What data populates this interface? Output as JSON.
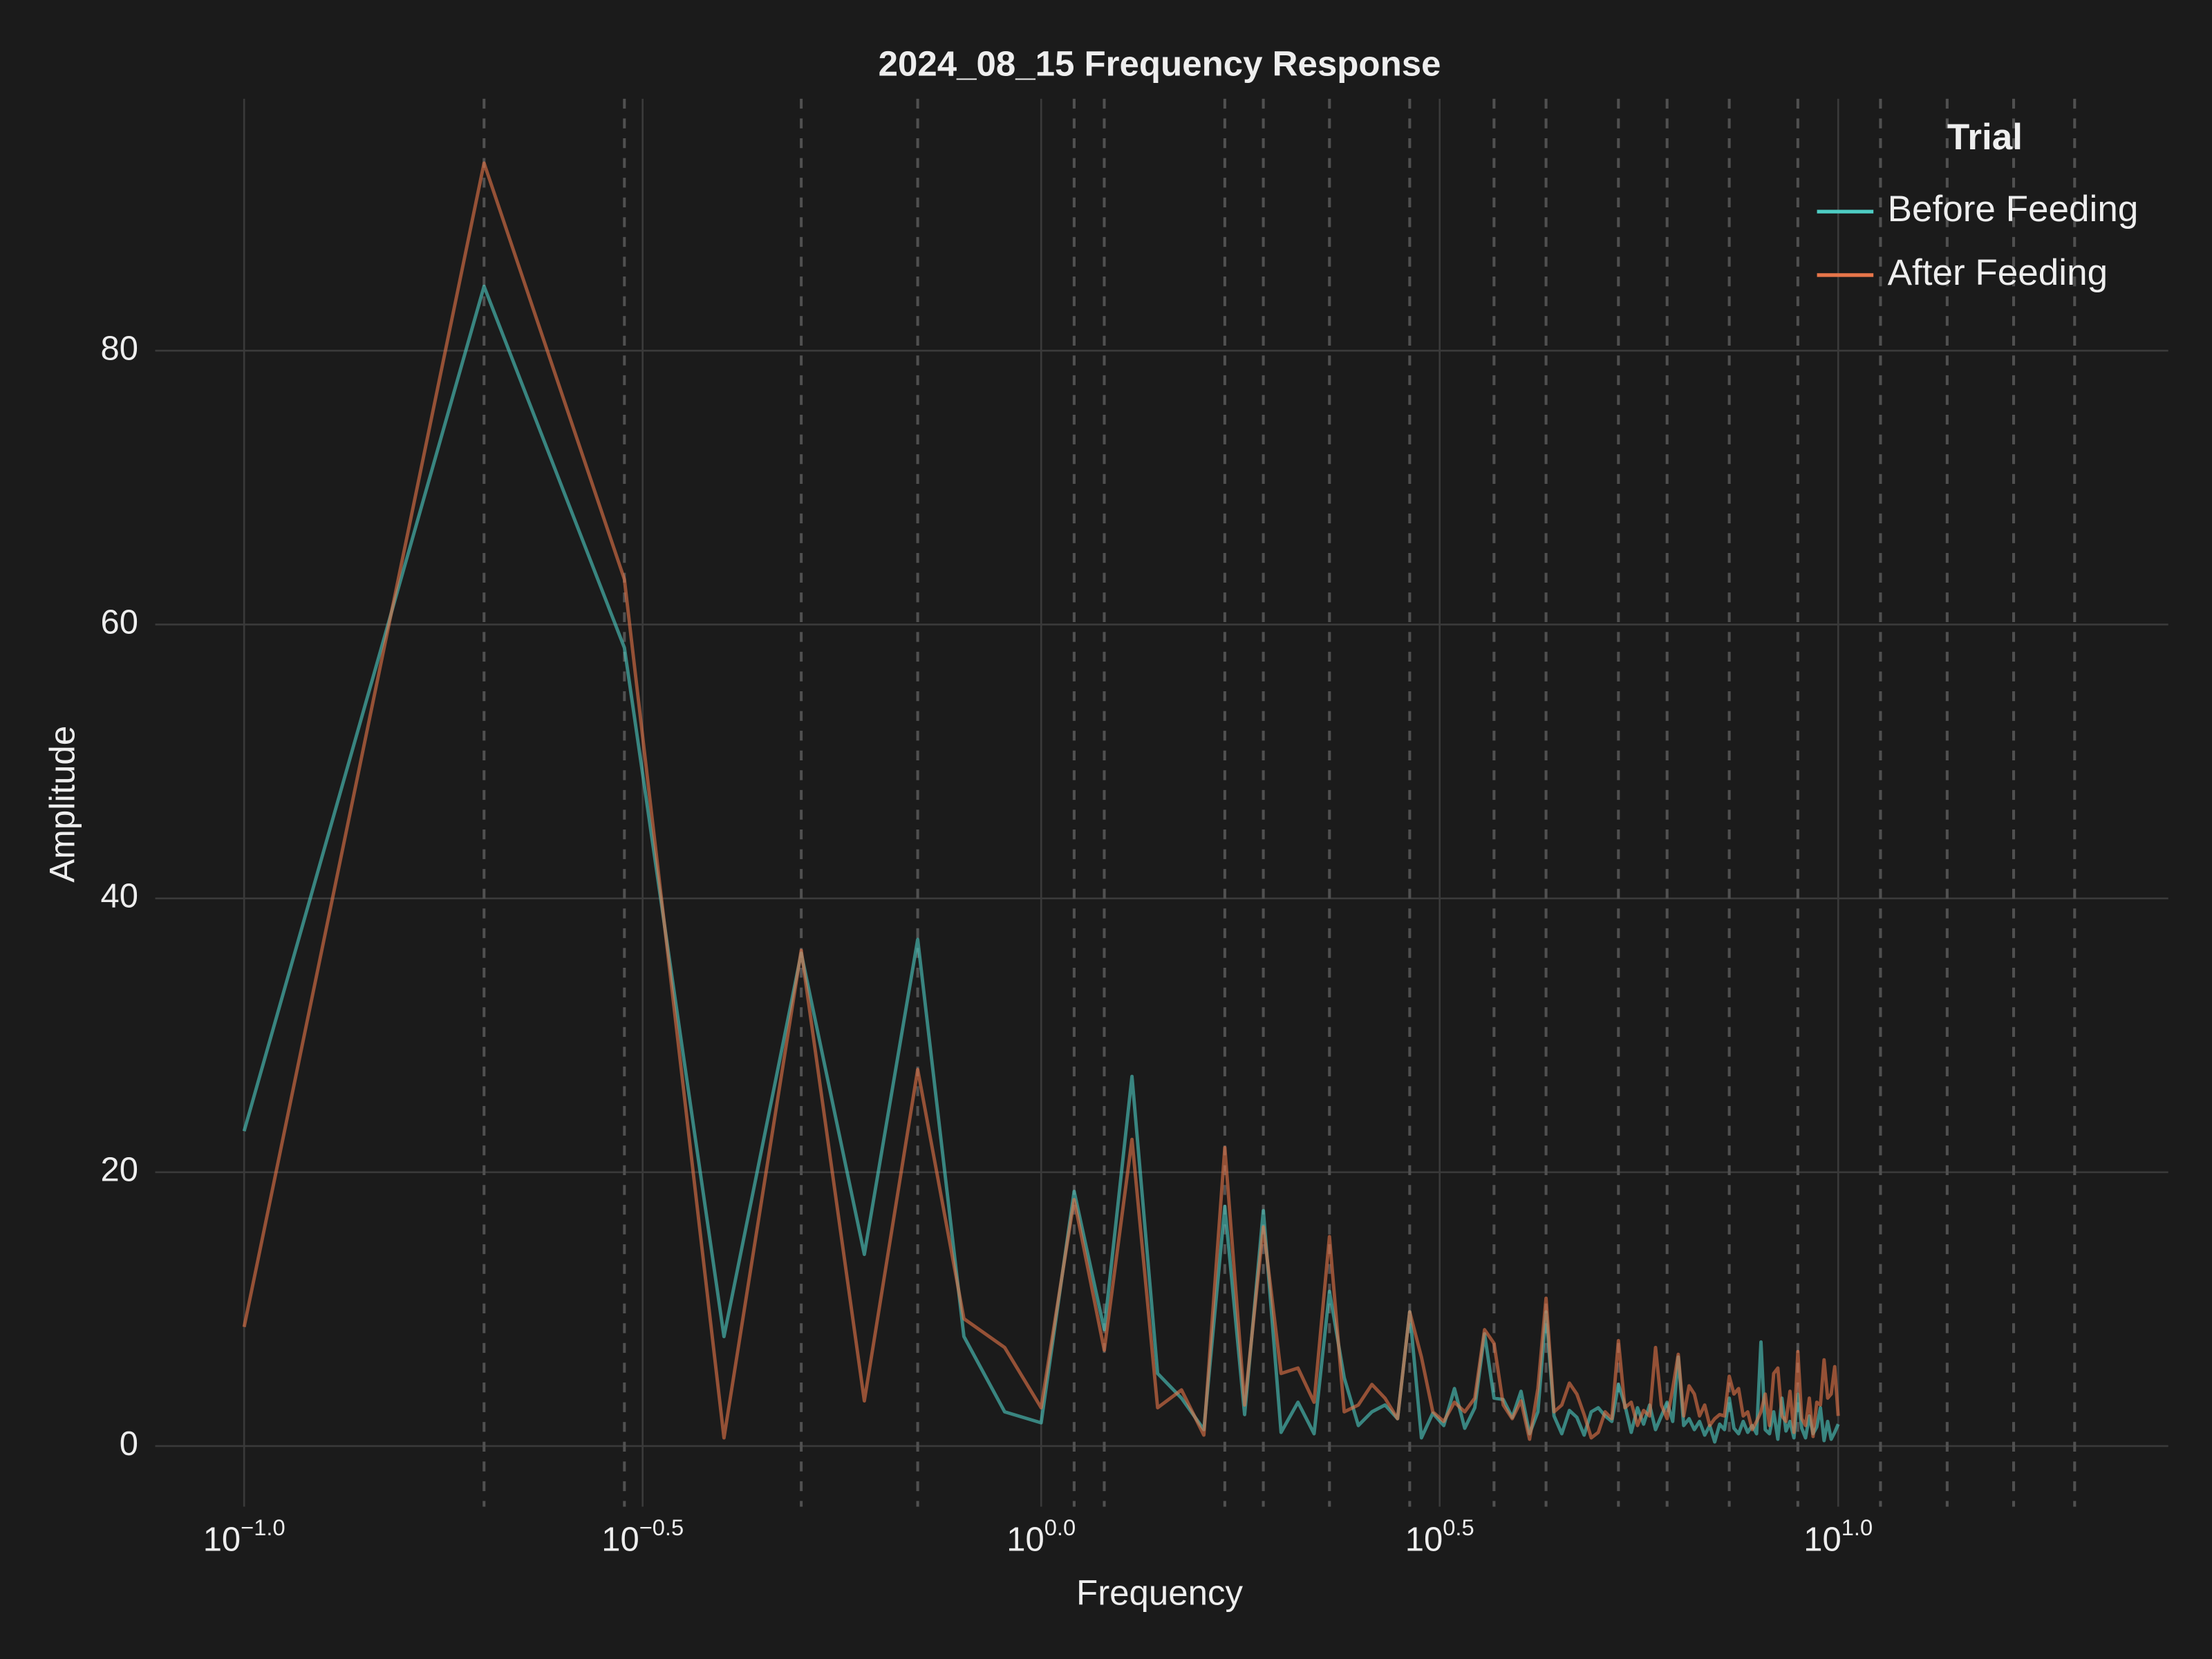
{
  "chart_data": {
    "type": "line",
    "title": "2024_08_15 Frequency Response",
    "x_label": "Frequency",
    "y_label": "Amplitude",
    "x_scale": "log",
    "grid": true,
    "legend_title": "Trial",
    "legend_position": "top-right",
    "xlim": [
      0.07734,
      25.95
    ],
    "ylim": [
      -3.6,
      98.4
    ],
    "xticks": [
      {
        "value": 0.1,
        "label": "10",
        "exponent": "−1.0"
      },
      {
        "value": 0.31623,
        "label": "10",
        "exponent": "−0.5"
      },
      {
        "value": 1,
        "label": "10",
        "exponent": "0.0"
      },
      {
        "value": 3.16228,
        "label": "10",
        "exponent": "0.5"
      },
      {
        "value": 10,
        "label": "10",
        "exponent": "1.0"
      }
    ],
    "yticks": [
      0,
      20,
      40,
      60,
      80
    ],
    "vlines": [
      0.2,
      0.3,
      0.5,
      0.7,
      1.1,
      1.2,
      1.7,
      1.9,
      2.3,
      2.9,
      3.7,
      4.3,
      5.3,
      6.1,
      7.3,
      8.9,
      11.3,
      13.7,
      16.6,
      19.8
    ],
    "x": [
      0.1,
      0.2,
      0.3,
      0.4,
      0.5,
      0.6,
      0.7,
      0.8,
      0.9,
      1.0,
      1.1,
      1.2,
      1.3,
      1.4,
      1.5,
      1.6,
      1.7,
      1.8,
      1.9,
      2.0,
      2.1,
      2.2,
      2.3,
      2.4,
      2.5,
      2.6,
      2.7,
      2.8,
      2.9,
      3.0,
      3.1,
      3.2,
      3.3,
      3.4,
      3.5,
      3.6,
      3.7,
      3.8,
      3.9,
      4.0,
      4.1,
      4.2,
      4.3,
      4.4,
      4.5,
      4.6,
      4.7,
      4.8,
      4.9,
      5.0,
      5.1,
      5.2,
      5.3,
      5.4,
      5.5,
      5.6,
      5.7,
      5.8,
      5.9,
      6.0,
      6.1,
      6.2,
      6.3,
      6.4,
      6.5,
      6.6,
      6.7,
      6.8,
      6.9,
      7.0,
      7.1,
      7.2,
      7.3,
      7.4,
      7.5,
      7.6,
      7.7,
      7.8,
      7.9,
      8.0,
      8.1,
      8.2,
      8.3,
      8.4,
      8.5,
      8.6,
      8.7,
      8.8,
      8.9,
      9.0,
      9.1,
      9.2,
      9.3,
      9.4,
      9.5,
      9.6,
      9.7,
      9.8,
      9.9,
      10.0
    ],
    "series": [
      {
        "name": "Before Feeding",
        "color": "#4ecdc4",
        "values": [
          23,
          84.7,
          58.3,
          8,
          36,
          14,
          37,
          8,
          2.5,
          1.7,
          18.6,
          8.5,
          27,
          5.3,
          3.5,
          1.2,
          17.5,
          2.3,
          17.2,
          1.0,
          3.2,
          0.9,
          11.3,
          5,
          1.5,
          2.5,
          3,
          2,
          9.8,
          0.6,
          2.4,
          1.5,
          4.2,
          1.3,
          2.8,
          8.2,
          3.5,
          3.4,
          2.1,
          4.0,
          0.9,
          2.5,
          9.8,
          2.2,
          0.9,
          2.6,
          2.1,
          0.8,
          2.5,
          2.8,
          2.2,
          1.8,
          4.5,
          3.0,
          1.0,
          2.8,
          1.6,
          3.0,
          1.2,
          2.2,
          3.2,
          1.8,
          6.5,
          1.5,
          2.0,
          1.2,
          1.8,
          0.8,
          1.5,
          0.3,
          1.6,
          1.2,
          3.5,
          1.3,
          0.9,
          1.8,
          1.0,
          1.5,
          0.9,
          7.6,
          1.2,
          0.9,
          2.5,
          0.5,
          3.5,
          1.1,
          1.8,
          0.6,
          3.8,
          1.3,
          0.6,
          2.2,
          0.9,
          1.4,
          2.8,
          0.4,
          1.8,
          0.5,
          1.0,
          1.6
        ]
      },
      {
        "name": "After Feeding",
        "color": "#e8764a",
        "values": [
          8.7,
          93.7,
          63.3,
          0.6,
          36.2,
          3.3,
          27.5,
          9.3,
          7.2,
          2.8,
          18,
          7,
          22.4,
          2.8,
          4.1,
          0.8,
          21.8,
          3,
          16,
          5.3,
          5.7,
          3.2,
          15.3,
          2.5,
          3,
          4.5,
          3.5,
          2,
          9.8,
          6.5,
          2.5,
          1.8,
          3.2,
          2.5,
          3.5,
          8.5,
          7.5,
          3.0,
          2.0,
          3.3,
          0.5,
          4.2,
          10.8,
          2.5,
          3.0,
          4.6,
          3.8,
          2.3,
          0.6,
          1.0,
          2.5,
          2.0,
          7.7,
          2.8,
          3.2,
          1.5,
          2.6,
          2.2,
          7.2,
          3.0,
          2.0,
          4.2,
          6.7,
          2.2,
          4.4,
          3.8,
          2.2,
          3.0,
          1.5,
          2.0,
          2.3,
          2.2,
          5.1,
          3.8,
          4.2,
          2.2,
          2.5,
          1.2,
          1.8,
          2.5,
          3.8,
          1.5,
          5.3,
          5.7,
          2.2,
          1.8,
          4.0,
          1.0,
          6.9,
          2.0,
          1.5,
          3.5,
          0.7,
          3.2,
          3.0,
          6.3,
          3.5,
          3.8,
          5.8,
          2.2
        ]
      }
    ]
  }
}
